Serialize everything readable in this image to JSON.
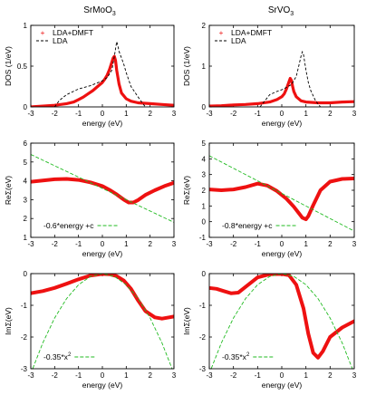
{
  "columns": [
    {
      "title": "SrMoO",
      "title_sub": "3"
    },
    {
      "title": "SrVO",
      "title_sub": "3"
    }
  ],
  "colors": {
    "lda_dmft": "#ee1111",
    "lda": "#000000",
    "fit": "#22bb22"
  },
  "chart_data": [
    {
      "type": "line",
      "row": 0,
      "col": 0,
      "xlabel": "energy (eV)",
      "ylabel": "DOS (1/eV)",
      "xlim": [
        -3,
        3
      ],
      "ylim": [
        0,
        1
      ],
      "xticks": [
        -3,
        -2,
        -1,
        0,
        1,
        2,
        3
      ],
      "yticks": [
        0,
        0.5,
        1
      ],
      "legend": "top-left",
      "series": [
        {
          "name": "LDA+DMFT",
          "style": "points",
          "x": [
            -3,
            -2.5,
            -2,
            -1.5,
            -1.2,
            -1,
            -0.8,
            -0.6,
            -0.4,
            -0.2,
            0,
            0.1,
            0.2,
            0.3,
            0.4,
            0.45,
            0.5,
            0.55,
            0.6,
            0.7,
            0.8,
            1,
            1.2,
            1.5,
            2,
            2.5,
            3
          ],
          "y": [
            0.0,
            0.01,
            0.02,
            0.04,
            0.06,
            0.09,
            0.12,
            0.16,
            0.2,
            0.25,
            0.3,
            0.34,
            0.39,
            0.46,
            0.55,
            0.6,
            0.62,
            0.57,
            0.45,
            0.28,
            0.17,
            0.1,
            0.07,
            0.05,
            0.04,
            0.03,
            0.02
          ]
        },
        {
          "name": "LDA",
          "style": "dashed",
          "x": [
            -2,
            -1.8,
            -1.5,
            -1,
            -0.5,
            0,
            0.2,
            0.4,
            0.5,
            0.6,
            0.65,
            0.7,
            0.8,
            0.9,
            1,
            1.2,
            1.5,
            1.8
          ],
          "y": [
            0.0,
            0.08,
            0.15,
            0.22,
            0.26,
            0.32,
            0.36,
            0.45,
            0.62,
            0.8,
            0.75,
            0.68,
            0.6,
            0.52,
            0.42,
            0.25,
            0.12,
            0.0
          ]
        }
      ]
    },
    {
      "type": "line",
      "row": 0,
      "col": 1,
      "xlabel": "energy (eV)",
      "ylabel": "DOS (1/eV)",
      "xlim": [
        -3,
        3
      ],
      "ylim": [
        0,
        2
      ],
      "xticks": [
        -3,
        -2,
        -1,
        0,
        1,
        2,
        3
      ],
      "yticks": [
        0,
        1,
        2
      ],
      "legend": "top-left",
      "series": [
        {
          "name": "LDA+DMFT",
          "style": "points",
          "x": [
            -3,
            -2.5,
            -2,
            -1.5,
            -1,
            -0.5,
            -0.2,
            0,
            0.1,
            0.2,
            0.3,
            0.35,
            0.4,
            0.45,
            0.5,
            0.6,
            0.8,
            1,
            1.5,
            2,
            2.5,
            3
          ],
          "y": [
            0.02,
            0.03,
            0.05,
            0.06,
            0.08,
            0.12,
            0.18,
            0.25,
            0.32,
            0.45,
            0.62,
            0.7,
            0.65,
            0.5,
            0.38,
            0.25,
            0.15,
            0.12,
            0.1,
            0.1,
            0.12,
            0.13
          ]
        },
        {
          "name": "LDA",
          "style": "dashed",
          "x": [
            -0.9,
            -0.7,
            -0.5,
            -0.2,
            0,
            0.2,
            0.4,
            0.6,
            0.7,
            0.8,
            0.85,
            0.9,
            0.95,
            1,
            1.1,
            1.2,
            1.4,
            1.6
          ],
          "y": [
            0.0,
            0.15,
            0.3,
            0.38,
            0.42,
            0.48,
            0.55,
            0.75,
            1.0,
            1.25,
            1.35,
            1.28,
            1.1,
            0.9,
            0.6,
            0.4,
            0.15,
            0.0
          ]
        }
      ]
    },
    {
      "type": "line",
      "row": 1,
      "col": 0,
      "xlabel": "energy (eV)",
      "ylabel": "ReΣ(eV)",
      "xlim": [
        -3,
        3
      ],
      "ylim": [
        1,
        6
      ],
      "xticks": [
        -3,
        -2,
        -1,
        0,
        1,
        2,
        3
      ],
      "yticks": [
        1,
        2,
        3,
        4,
        5,
        6
      ],
      "legend": "bottom-left",
      "series": [
        {
          "name": "",
          "style": "thick",
          "x": [
            -3,
            -2.5,
            -2,
            -1.5,
            -1,
            -0.5,
            0,
            0.3,
            0.6,
            0.9,
            1.1,
            1.3,
            1.5,
            1.8,
            2.2,
            2.6,
            3
          ],
          "y": [
            3.95,
            4.02,
            4.08,
            4.1,
            4.05,
            3.92,
            3.72,
            3.52,
            3.28,
            3.0,
            2.85,
            2.85,
            2.98,
            3.25,
            3.5,
            3.72,
            3.9
          ]
        },
        {
          "name": "-0.6*energy +c",
          "style": "fit",
          "x": [
            -3,
            3
          ],
          "y": [
            5.4,
            1.8
          ]
        }
      ]
    },
    {
      "type": "line",
      "row": 1,
      "col": 1,
      "xlabel": "energy (eV)",
      "ylabel": "ReΣ(eV)",
      "xlim": [
        -3,
        3
      ],
      "ylim": [
        -1,
        5
      ],
      "xticks": [
        -3,
        -2,
        -1,
        0,
        1,
        2,
        3
      ],
      "yticks": [
        -1,
        0,
        1,
        2,
        3,
        4,
        5
      ],
      "legend": "bottom-left",
      "series": [
        {
          "name": "",
          "style": "thick",
          "x": [
            -3,
            -2.5,
            -2,
            -1.5,
            -1,
            -0.6,
            -0.2,
            0.2,
            0.5,
            0.7,
            0.85,
            1,
            1.1,
            1.3,
            1.6,
            2,
            2.5,
            3
          ],
          "y": [
            2.05,
            2.0,
            2.05,
            2.2,
            2.42,
            2.3,
            1.95,
            1.45,
            0.95,
            0.55,
            0.25,
            0.15,
            0.35,
            1.05,
            2.0,
            2.55,
            2.72,
            2.75
          ]
        },
        {
          "name": "-0.8*energy +c",
          "style": "fit",
          "x": [
            -3,
            3
          ],
          "y": [
            4.2,
            -0.6
          ]
        }
      ]
    },
    {
      "type": "line",
      "row": 2,
      "col": 0,
      "xlabel": "energy (eV)",
      "ylabel": "ImΣ(eV)",
      "xlim": [
        -3,
        3
      ],
      "ylim": [
        -3,
        0
      ],
      "xticks": [
        -3,
        -2,
        -1,
        0,
        1,
        2,
        3
      ],
      "yticks": [
        -3,
        -2,
        -1,
        0
      ],
      "legend": "bottom-left",
      "series": [
        {
          "name": "",
          "style": "thick",
          "x": [
            -3,
            -2.5,
            -2,
            -1.5,
            -1,
            -0.5,
            0,
            0.3,
            0.6,
            0.9,
            1.2,
            1.5,
            1.8,
            2.2,
            2.5,
            2.8,
            3
          ],
          "y": [
            -0.62,
            -0.55,
            -0.45,
            -0.32,
            -0.18,
            -0.06,
            -0.01,
            -0.02,
            -0.08,
            -0.22,
            -0.48,
            -0.85,
            -1.18,
            -1.38,
            -1.42,
            -1.38,
            -1.35
          ]
        },
        {
          "name": "-0.35*x",
          "name_sup": "2",
          "style": "fit",
          "x": [
            -3,
            -2.5,
            -2,
            -1.5,
            -1,
            -0.5,
            0,
            0.5,
            1,
            1.5,
            2,
            2.5,
            3
          ],
          "y": [
            -3.15,
            -2.1875,
            -1.4,
            -0.7875,
            -0.35,
            -0.0875,
            0,
            -0.0875,
            -0.35,
            -0.7875,
            -1.4,
            -2.1875,
            -3.15
          ]
        }
      ]
    },
    {
      "type": "line",
      "row": 2,
      "col": 1,
      "xlabel": "energy (eV)",
      "ylabel": "ImΣ(eV)",
      "xlim": [
        -3,
        3
      ],
      "ylim": [
        -3,
        0
      ],
      "xticks": [
        -3,
        -2,
        -1,
        0,
        1,
        2,
        3
      ],
      "yticks": [
        -3,
        -2,
        -1,
        0
      ],
      "legend": "bottom-left",
      "series": [
        {
          "name": "",
          "style": "thick",
          "x": [
            -3,
            -2.7,
            -2.4,
            -2.1,
            -1.8,
            -1.5,
            -1,
            -0.5,
            0,
            0.3,
            0.6,
            0.9,
            1.1,
            1.3,
            1.5,
            1.7,
            2,
            2.5,
            3
          ],
          "y": [
            -0.45,
            -0.48,
            -0.55,
            -0.62,
            -0.6,
            -0.42,
            -0.12,
            -0.02,
            -0.01,
            -0.05,
            -0.35,
            -1.1,
            -1.9,
            -2.5,
            -2.65,
            -2.45,
            -2.0,
            -1.7,
            -1.5
          ]
        },
        {
          "name": "-0.35*x",
          "name_sup": "2",
          "style": "fit",
          "x": [
            -3,
            -2.5,
            -2,
            -1.5,
            -1,
            -0.5,
            0,
            0.5,
            1,
            1.5,
            2,
            2.5,
            3
          ],
          "y": [
            -3.15,
            -2.1875,
            -1.4,
            -0.7875,
            -0.35,
            -0.0875,
            0,
            -0.0875,
            -0.35,
            -0.7875,
            -1.4,
            -2.1875,
            -3.15
          ]
        }
      ]
    }
  ]
}
